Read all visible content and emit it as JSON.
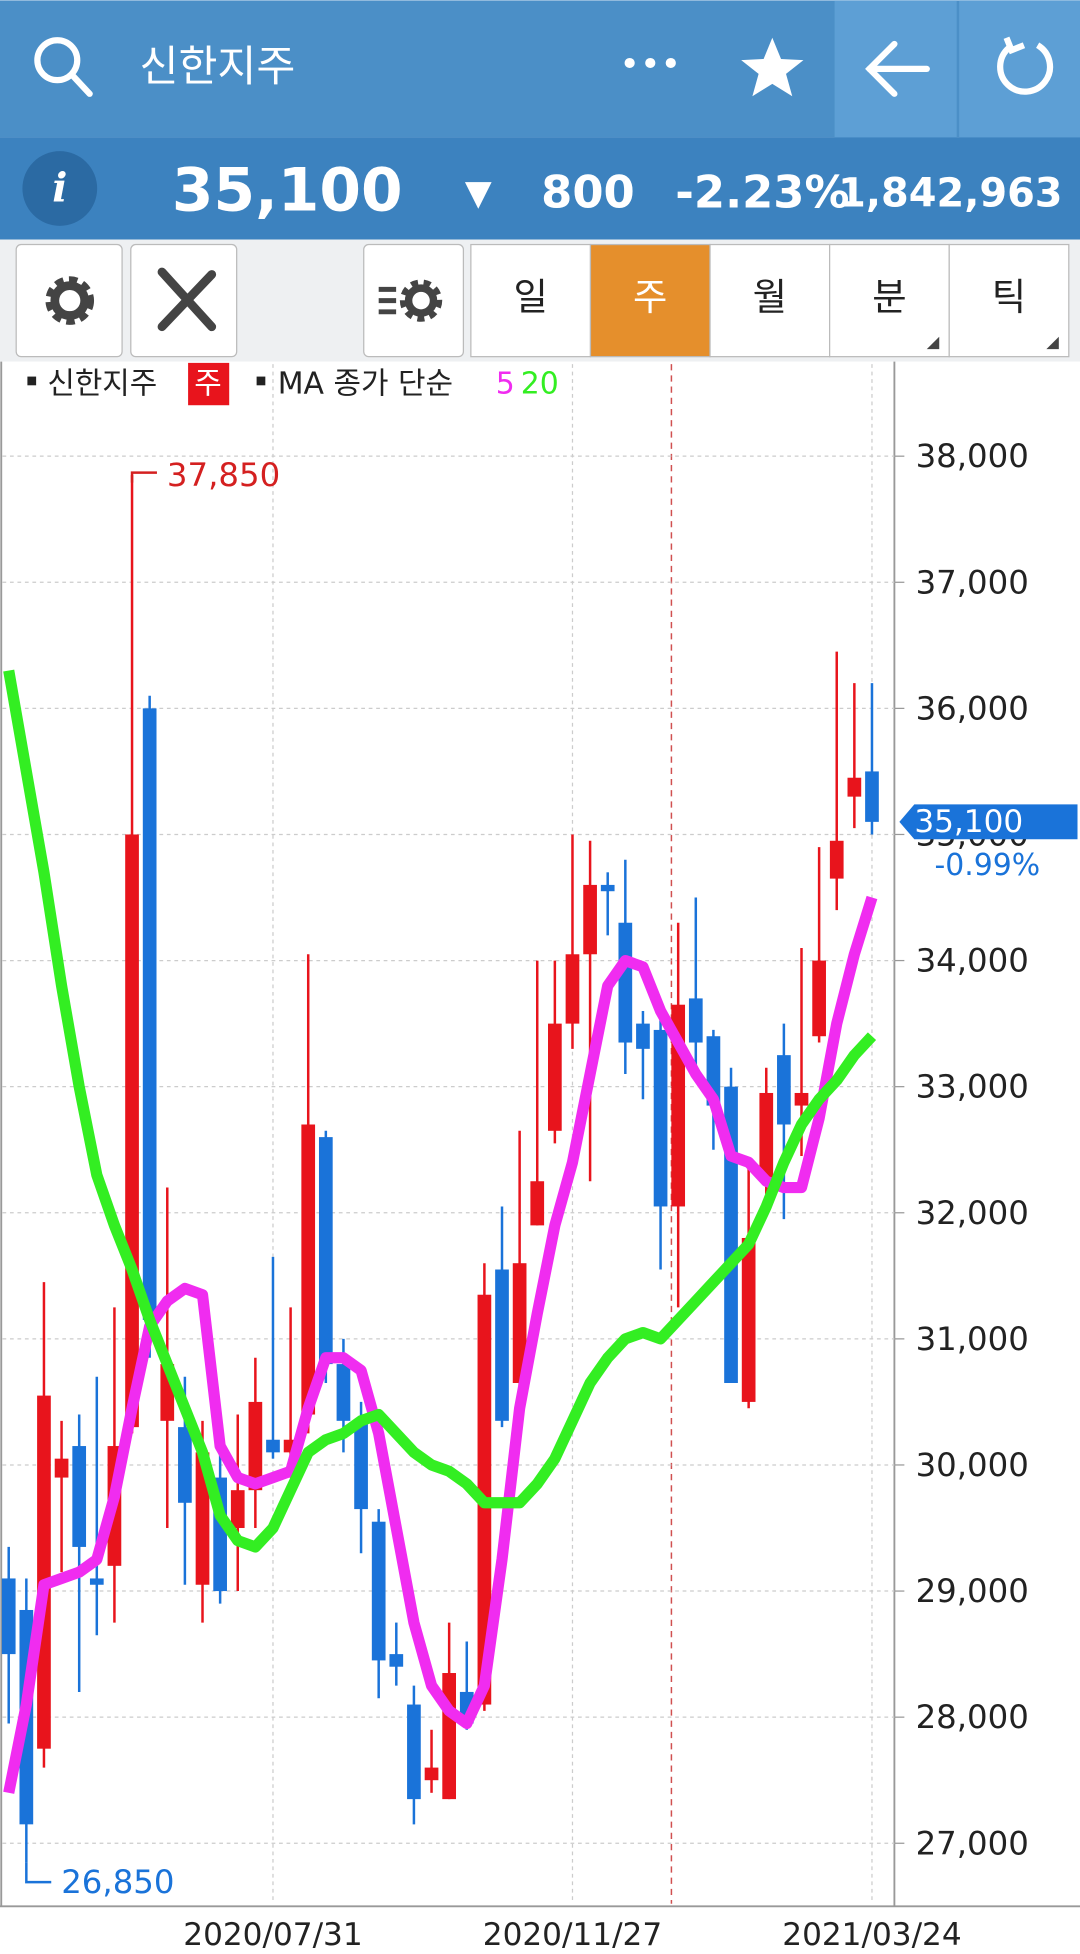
{
  "header": {
    "title": "신한지주",
    "menu": "•••"
  },
  "quote": {
    "info": "i",
    "price": "35,100",
    "arrow": "▼",
    "change": "800",
    "change_rate": "-2.23%",
    "volume": "1,842,963"
  },
  "toolbar": {
    "periods": [
      "일",
      "주",
      "월",
      "분",
      "틱"
    ],
    "active": 1
  },
  "chart_data": {
    "type": "candlestick",
    "legend": {
      "symbol": "신한지주",
      "period": "주",
      "indicator": "MA 종가 단순"
    },
    "categories": [
      null,
      null,
      null,
      null,
      null,
      null,
      null,
      null,
      null,
      null,
      null,
      null,
      null,
      null,
      null,
      "2020/07/31",
      null,
      null,
      null,
      null,
      null,
      null,
      null,
      null,
      null,
      null,
      null,
      null,
      null,
      null,
      null,
      null,
      "2020/11/27",
      null,
      null,
      null,
      null,
      null,
      null,
      null,
      null,
      null,
      null,
      null,
      null,
      null,
      null,
      null,
      null,
      "2021/03/24"
    ],
    "open": [
      29100,
      28850,
      27750,
      29900,
      30150,
      29100,
      29200,
      30300,
      36000,
      30350,
      30300,
      29050,
      29900,
      29500,
      29800,
      30200,
      30100,
      30400,
      32600,
      30800,
      30350,
      29550,
      28500,
      28100,
      27500,
      27350,
      28200,
      28100,
      31550,
      30650,
      31900,
      32650,
      33500,
      34050,
      34600,
      34300,
      33500,
      33450,
      32050,
      33700,
      33400,
      33000,
      30500,
      32250,
      33250,
      32850,
      33400,
      34650,
      35300,
      35500
    ],
    "high": [
      29350,
      29100,
      31450,
      30350,
      30400,
      30700,
      31250,
      37850,
      36100,
      32200,
      30700,
      30350,
      30150,
      30400,
      30850,
      31650,
      31250,
      34050,
      32650,
      31000,
      30500,
      29650,
      28750,
      28250,
      27900,
      28750,
      28600,
      31600,
      32050,
      32650,
      34000,
      34000,
      35000,
      34950,
      34700,
      34800,
      33600,
      33600,
      34300,
      34500,
      33450,
      33150,
      32350,
      33150,
      33500,
      34100,
      34900,
      36450,
      36200,
      36200
    ],
    "low": [
      27950,
      26850,
      27600,
      29150,
      28200,
      28650,
      28750,
      30250,
      30850,
      29500,
      29050,
      28750,
      28900,
      29000,
      29500,
      30050,
      29900,
      30250,
      30650,
      30100,
      29300,
      28150,
      28250,
      27150,
      27400,
      27350,
      27900,
      28050,
      30300,
      30550,
      31900,
      32550,
      33300,
      32250,
      34200,
      33100,
      32900,
      31550,
      31250,
      33150,
      32500,
      30650,
      30450,
      32150,
      31950,
      32450,
      33350,
      34400,
      35050,
      35000
    ],
    "close": [
      28500,
      27150,
      30550,
      30050,
      29350,
      29050,
      30150,
      35000,
      31150,
      30800,
      29700,
      30100,
      29000,
      29800,
      30500,
      30100,
      30200,
      32700,
      30800,
      30350,
      29650,
      28450,
      28400,
      27350,
      27600,
      28350,
      27950,
      31350,
      30350,
      31600,
      32250,
      33500,
      34050,
      34600,
      34550,
      33350,
      33300,
      32050,
      33650,
      33350,
      32850,
      30650,
      31800,
      32950,
      32700,
      32950,
      34000,
      34950,
      35450,
      35100
    ],
    "up_color": "#e8141c",
    "down_color": "#1a73d9",
    "lines": [
      {
        "name": "5",
        "color": "#f02cf0",
        "values": [
          27400,
          28100,
          29050,
          29100,
          29150,
          29250,
          29750,
          30450,
          31100,
          31300,
          31400,
          31350,
          30150,
          29900,
          29850,
          29900,
          29950,
          30450,
          30850,
          30850,
          30750,
          30250,
          29500,
          28750,
          28250,
          28050,
          27950,
          28250,
          29250,
          30450,
          31200,
          31900,
          32400,
          33100,
          33800,
          34000,
          33950,
          33600,
          33350,
          33100,
          32900,
          32450,
          32400,
          32250,
          32200,
          32200,
          32750,
          33500,
          34050,
          34500
        ]
      },
      {
        "name": "20",
        "color": "#33ee22",
        "values": [
          36300,
          35500,
          34700,
          33800,
          33000,
          32300,
          31900,
          31550,
          31150,
          30800,
          30450,
          30100,
          29600,
          29400,
          29350,
          29500,
          29800,
          30100,
          30200,
          30250,
          30350,
          30400,
          30250,
          30100,
          30000,
          29950,
          29850,
          29700,
          29700,
          29700,
          29850,
          30050,
          30350,
          30650,
          30850,
          31000,
          31050,
          31000,
          31150,
          31300,
          31450,
          31600,
          31750,
          32050,
          32400,
          32700,
          32900,
          33050,
          33250,
          33400
        ]
      }
    ],
    "ylim": [
      26520,
      38730
    ],
    "yticks": [
      {
        "value": 27000,
        "label": "27,000"
      },
      {
        "value": 28000,
        "label": "28,000"
      },
      {
        "value": 29000,
        "label": "29,000"
      },
      {
        "value": 30000,
        "label": "30,000"
      },
      {
        "value": 31000,
        "label": "31,000"
      },
      {
        "value": 32000,
        "label": "32,000"
      },
      {
        "value": 33000,
        "label": "33,000"
      },
      {
        "value": 34000,
        "label": "34,000"
      },
      {
        "value": 35000,
        "label": "35,000"
      },
      {
        "value": 36000,
        "label": "36,000"
      },
      {
        "value": 37000,
        "label": "37,000"
      },
      {
        "value": 38000,
        "label": "38,000"
      }
    ],
    "grid": true,
    "max_label": {
      "value": 37850,
      "label": "37,850"
    },
    "min_label": {
      "value": 26850,
      "label": "26,850"
    },
    "last_price": {
      "value": 35100,
      "label": "35,100"
    },
    "last_change": "-0.99%"
  }
}
